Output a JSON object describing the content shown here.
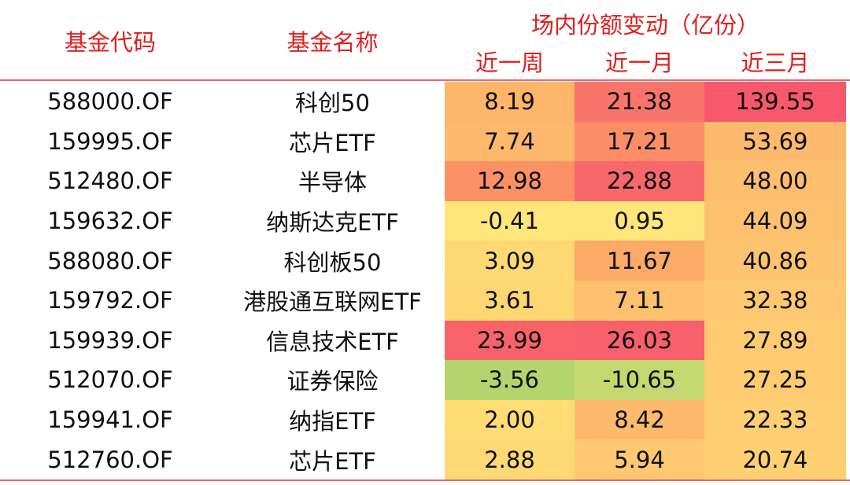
{
  "header": {
    "code": "基金代码",
    "name": "基金名称",
    "group": "场内份额变动（亿份）",
    "periods": [
      "近一周",
      "近一月",
      "近三月"
    ]
  },
  "accent_color": "#E0201F",
  "chart_data": {
    "type": "table",
    "columns": [
      "基金代码",
      "基金名称",
      "近一周",
      "近一月",
      "近三月"
    ],
    "rows": [
      {
        "code": "588000.OF",
        "name": "科创50",
        "values": [
          "8.19",
          "21.38",
          "139.55"
        ],
        "colors": [
          "#FDB56A",
          "#F9746A",
          "#F8586B"
        ]
      },
      {
        "code": "159995.OF",
        "name": "芯片ETF",
        "values": [
          "7.74",
          "17.21",
          "53.69"
        ],
        "colors": [
          "#FDB86C",
          "#FB8E66",
          "#FDBA6D"
        ]
      },
      {
        "code": "512480.OF",
        "name": "半导体",
        "values": [
          "12.98",
          "22.88",
          "48.00"
        ],
        "colors": [
          "#FB9164",
          "#F8686B",
          "#FDBE6E"
        ]
      },
      {
        "code": "159632.OF",
        "name": "纳斯达克ETF",
        "values": [
          "-0.41",
          "0.95",
          "44.09"
        ],
        "colors": [
          "#FFE57A",
          "#FFE57A",
          "#FDC16E"
        ]
      },
      {
        "code": "588080.OF",
        "name": "科创板50",
        "values": [
          "3.09",
          "11.67",
          "40.86"
        ],
        "colors": [
          "#FED872",
          "#FCAA68",
          "#FEC36F"
        ]
      },
      {
        "code": "159792.OF",
        "name": "港股通互联网ETF",
        "values": [
          "3.61",
          "7.11",
          "32.38"
        ],
        "colors": [
          "#FED672",
          "#FDC06E",
          "#FEC870"
        ]
      },
      {
        "code": "159939.OF",
        "name": "信息技术ETF",
        "values": [
          "23.99",
          "26.03",
          "27.89"
        ],
        "colors": [
          "#F8636B",
          "#F8606B",
          "#FECB71"
        ]
      },
      {
        "code": "512070.OF",
        "name": "证券保险",
        "values": [
          "-3.56",
          "-10.65",
          "27.25"
        ],
        "colors": [
          "#B4D56E",
          "#C3D86E",
          "#FECB71"
        ]
      },
      {
        "code": "159941.OF",
        "name": "纳指ETF",
        "values": [
          "2.00",
          "8.42",
          "22.33"
        ],
        "colors": [
          "#FFDC74",
          "#FDB96C",
          "#FECF72"
        ]
      },
      {
        "code": "512760.OF",
        "name": "芯片ETF",
        "values": [
          "2.88",
          "5.94",
          "20.74"
        ],
        "colors": [
          "#FED873",
          "#FEC870",
          "#FED072"
        ]
      }
    ]
  }
}
